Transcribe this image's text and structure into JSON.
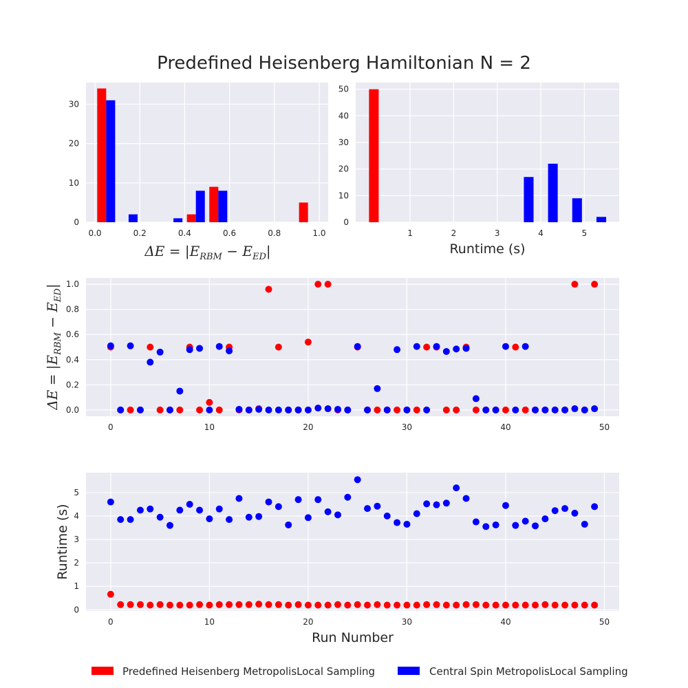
{
  "figure": {
    "title": "Predefined Heisenberg Hamiltonian N = 2"
  },
  "colors": {
    "red": "#ff0000",
    "blue": "#0000ff",
    "panel_bg": "#eaeaf2",
    "grid": "#ffffff",
    "tick_text": "#262626"
  },
  "legend": {
    "placement": "bottom-center",
    "entries": [
      {
        "label": "Predefined Heisenberg MetropolisLocal Sampling",
        "color": "#ff0000"
      },
      {
        "label": "Central Spin MetropolisLocal Sampling",
        "color": "#0000ff"
      }
    ]
  },
  "chart_data": [
    {
      "id": "hist-delta-e",
      "type": "bar",
      "xlabel": "ΔE = |E_RBM − E_ED|",
      "ylabel": "",
      "xlim": [
        -0.04,
        1.04
      ],
      "ylim": [
        0,
        35.5
      ],
      "xticks": [
        "0.0",
        "0.2",
        "0.4",
        "0.6",
        "0.8",
        "1.0"
      ],
      "xtick_values": [
        0,
        0.2,
        0.4,
        0.6,
        0.8,
        1.0
      ],
      "yticks": [
        "0",
        "10",
        "20",
        "30"
      ],
      "ytick_values": [
        0,
        10,
        20,
        30
      ],
      "grid": true,
      "bin_edges": [
        0.0,
        0.1,
        0.2,
        0.3,
        0.4,
        0.5,
        0.6,
        0.7,
        0.8,
        0.9,
        1.0
      ],
      "series": [
        {
          "name": "Predefined Heisenberg MetropolisLocal Sampling",
          "color": "#ff0000",
          "values": [
            34,
            0,
            0,
            0,
            2,
            9,
            0,
            0,
            0,
            5
          ]
        },
        {
          "name": "Central Spin MetropolisLocal Sampling",
          "color": "#0000ff",
          "values": [
            31,
            2,
            0,
            1,
            8,
            8,
            0,
            0,
            0,
            0
          ]
        }
      ]
    },
    {
      "id": "hist-runtime",
      "type": "bar",
      "xlabel": "Runtime (s)",
      "ylabel": "",
      "xlim": [
        -0.25,
        5.8
      ],
      "ylim": [
        0,
        52.5
      ],
      "xticks": [
        "1",
        "2",
        "3",
        "4",
        "5"
      ],
      "xtick_values": [
        1,
        2,
        3,
        4,
        5
      ],
      "yticks": [
        "0",
        "10",
        "20",
        "30",
        "40",
        "50"
      ],
      "ytick_values": [
        0,
        10,
        20,
        30,
        40,
        50
      ],
      "grid": true,
      "bin_edges": [
        0.0,
        0.556,
        1.111,
        1.667,
        2.222,
        2.778,
        3.333,
        3.889,
        4.444,
        5.0,
        5.556
      ],
      "series": [
        {
          "name": "Predefined Heisenberg MetropolisLocal Sampling",
          "color": "#ff0000",
          "values": [
            50,
            0,
            0,
            0,
            0,
            0,
            0,
            0,
            0,
            0
          ]
        },
        {
          "name": "Central Spin MetropolisLocal Sampling",
          "color": "#0000ff",
          "values": [
            0,
            0,
            0,
            0,
            0,
            0,
            17,
            22,
            9,
            2
          ]
        }
      ]
    },
    {
      "id": "scatter-delta-e",
      "type": "scatter",
      "xlabel": "",
      "ylabel": "ΔE = |E_RBM − E_ED|",
      "xlim": [
        -2.5,
        51.5
      ],
      "ylim": [
        -0.05,
        1.05
      ],
      "xticks": [
        "0",
        "10",
        "20",
        "30",
        "40",
        "50"
      ],
      "xtick_values": [
        0,
        10,
        20,
        30,
        40,
        50
      ],
      "yticks": [
        "0.0",
        "0.2",
        "0.4",
        "0.6",
        "0.8",
        "1.0"
      ],
      "ytick_values": [
        0,
        0.2,
        0.4,
        0.6,
        0.8,
        1.0
      ],
      "grid": true,
      "series": [
        {
          "name": "Predefined Heisenberg MetropolisLocal Sampling",
          "color": "#ff0000",
          "x": [
            0,
            1,
            2,
            3,
            4,
            5,
            6,
            7,
            8,
            9,
            10,
            11,
            12,
            13,
            14,
            15,
            16,
            17,
            18,
            19,
            20,
            21,
            22,
            23,
            24,
            25,
            26,
            27,
            28,
            29,
            30,
            31,
            32,
            33,
            34,
            35,
            36,
            37,
            38,
            39,
            40,
            41,
            42,
            43,
            44,
            45,
            46,
            47,
            48,
            49
          ],
          "y": [
            0.5,
            0,
            0,
            0,
            0.5,
            0,
            0,
            0,
            0.5,
            0,
            0.06,
            0,
            0.5,
            0,
            0,
            0.01,
            0.96,
            0.5,
            0,
            0,
            0.54,
            1.0,
            1.0,
            0,
            0,
            0.5,
            0,
            0,
            0,
            0,
            0,
            0,
            0.5,
            0.5,
            0,
            0,
            0.5,
            0,
            0,
            0,
            0,
            0.5,
            0,
            0,
            0,
            0,
            0,
            1.0,
            0,
            1.0
          ]
        },
        {
          "name": "Central Spin MetropolisLocal Sampling",
          "color": "#0000ff",
          "x": [
            0,
            1,
            2,
            3,
            4,
            5,
            6,
            7,
            8,
            9,
            10,
            11,
            12,
            13,
            14,
            15,
            16,
            17,
            18,
            19,
            20,
            21,
            22,
            23,
            24,
            25,
            26,
            27,
            28,
            29,
            30,
            31,
            32,
            33,
            34,
            35,
            36,
            37,
            38,
            39,
            40,
            41,
            42,
            43,
            44,
            45,
            46,
            47,
            48,
            49
          ],
          "y": [
            0.51,
            0,
            0.51,
            0,
            0.38,
            0.46,
            0,
            0.15,
            0.48,
            0.49,
            0,
            0.505,
            0.47,
            0.005,
            0,
            0.005,
            0,
            0,
            0,
            0,
            0,
            0.015,
            0.01,
            0.005,
            0,
            0.505,
            0,
            0.17,
            0,
            0.48,
            0,
            0.505,
            0,
            0.505,
            0.465,
            0.485,
            0.49,
            0.09,
            0,
            0,
            0.505,
            0,
            0.505,
            0,
            0,
            0,
            0,
            0.01,
            0,
            0.01
          ]
        }
      ]
    },
    {
      "id": "scatter-runtime",
      "type": "scatter",
      "xlabel": "Run Number",
      "ylabel": "Runtime (s)",
      "xlim": [
        -2.5,
        51.5
      ],
      "ylim": [
        -0.05,
        5.85
      ],
      "xticks": [
        "0",
        "10",
        "20",
        "30",
        "40",
        "50"
      ],
      "xtick_values": [
        0,
        10,
        20,
        30,
        40,
        50
      ],
      "yticks": [
        "0",
        "1",
        "2",
        "3",
        "4",
        "5"
      ],
      "ytick_values": [
        0,
        1,
        2,
        3,
        4,
        5
      ],
      "grid": true,
      "series": [
        {
          "name": "Predefined Heisenberg MetropolisLocal Sampling",
          "color": "#ff0000",
          "x": [
            0,
            1,
            2,
            3,
            4,
            5,
            6,
            7,
            8,
            9,
            10,
            11,
            12,
            13,
            14,
            15,
            16,
            17,
            18,
            19,
            20,
            21,
            22,
            23,
            24,
            25,
            26,
            27,
            28,
            29,
            30,
            31,
            32,
            33,
            34,
            35,
            36,
            37,
            38,
            39,
            40,
            41,
            42,
            43,
            44,
            45,
            46,
            47,
            48,
            49
          ],
          "y": [
            0.66,
            0.22,
            0.22,
            0.22,
            0.2,
            0.22,
            0.2,
            0.2,
            0.2,
            0.22,
            0.2,
            0.22,
            0.22,
            0.22,
            0.22,
            0.24,
            0.22,
            0.22,
            0.2,
            0.22,
            0.2,
            0.2,
            0.2,
            0.22,
            0.2,
            0.22,
            0.2,
            0.22,
            0.2,
            0.2,
            0.2,
            0.2,
            0.22,
            0.22,
            0.2,
            0.2,
            0.22,
            0.22,
            0.2,
            0.2,
            0.2,
            0.2,
            0.2,
            0.2,
            0.22,
            0.2,
            0.2,
            0.2,
            0.2,
            0.2
          ]
        },
        {
          "name": "Central Spin MetropolisLocal Sampling",
          "color": "#0000ff",
          "x": [
            0,
            1,
            2,
            3,
            4,
            5,
            6,
            7,
            8,
            9,
            10,
            11,
            12,
            13,
            14,
            15,
            16,
            17,
            18,
            19,
            20,
            21,
            22,
            23,
            24,
            25,
            26,
            27,
            28,
            29,
            30,
            31,
            32,
            33,
            34,
            35,
            36,
            37,
            38,
            39,
            40,
            41,
            42,
            43,
            44,
            45,
            46,
            47,
            48,
            49
          ],
          "y": [
            4.6,
            3.85,
            3.85,
            4.25,
            4.3,
            3.95,
            3.6,
            4.25,
            4.5,
            4.25,
            3.88,
            4.3,
            3.85,
            4.75,
            3.95,
            3.98,
            4.6,
            4.4,
            3.62,
            4.7,
            3.93,
            4.7,
            4.18,
            4.05,
            4.8,
            5.55,
            4.32,
            4.42,
            4.0,
            3.72,
            3.65,
            4.1,
            4.52,
            4.48,
            4.55,
            5.2,
            4.75,
            3.75,
            3.55,
            3.62,
            4.45,
            3.6,
            3.78,
            3.58,
            3.88,
            4.23,
            4.32,
            4.12,
            3.65,
            4.4
          ]
        }
      ]
    }
  ]
}
